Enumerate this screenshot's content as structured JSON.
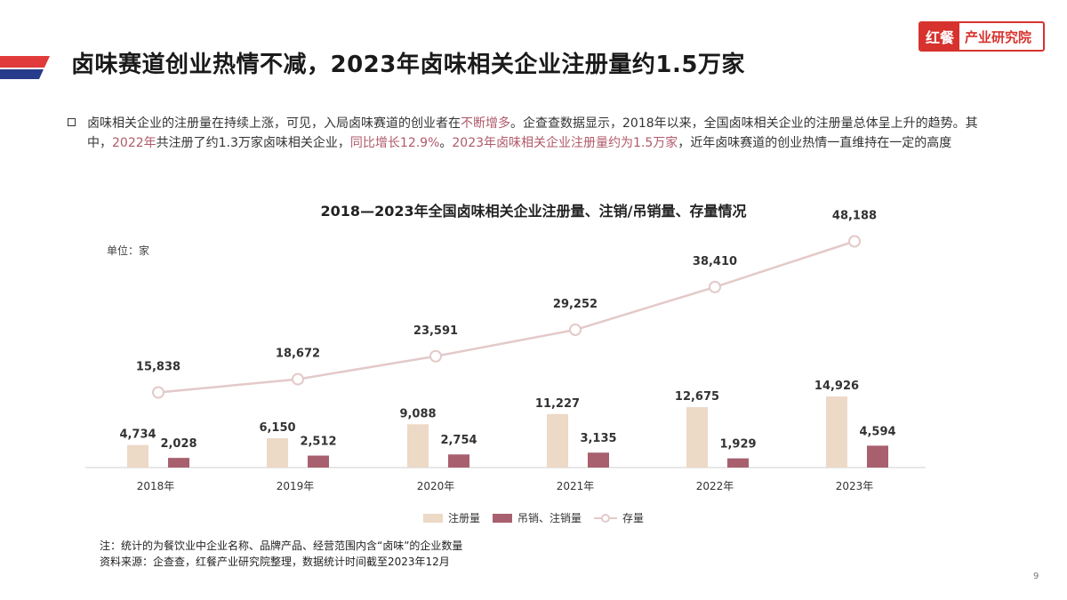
{
  "header": {
    "title": "卤味赛道创业热情不减，2023年卤味相关企业注册量约1.5万家",
    "brand_mark": "红餐",
    "brand_text": "产业研究院"
  },
  "colors": {
    "stripe_red": "#e03a3a",
    "stripe_blue": "#283c8c",
    "accent_red": "#d7322e",
    "highlight": "#b05a6a",
    "registered_bar": "#ecd9c6",
    "cancelled_bar": "#a8606e",
    "stock_line": "#e4c9c9"
  },
  "summary": {
    "p1": "卤味相关企业的注册量在持续上涨，可见，入局卤味赛道的创业者在",
    "h1": "不断增多",
    "p2": "。企查查数据显示，2018年以来，全国卤味相关企业的注册量总体呈上升的趋势。其中，",
    "h2": "2022年",
    "p3": "共注册了约1.3万家卤味相关企业，",
    "h3": "同比增长12.9%",
    "p4": "。",
    "h4": "2023年卤味相关企业注册量约为1.5万家",
    "p5": "，近年卤味赛道的创业热情一直维持在一定的高度"
  },
  "chart_data": {
    "type": "bar",
    "title": "2018—2023年全国卤味相关企业注册量、注销/吊销量、存量情况",
    "unit": "单位：家",
    "categories": [
      "2018年",
      "2019年",
      "2020年",
      "2021年",
      "2022年",
      "2023年"
    ],
    "series": [
      {
        "name": "注册量",
        "type": "bar",
        "values": [
          4734,
          6150,
          9088,
          11227,
          12675,
          14926
        ],
        "labels": [
          "4,734",
          "6,150",
          "9,088",
          "11,227",
          "12,675",
          "14,926"
        ]
      },
      {
        "name": "吊销、注销量",
        "type": "bar",
        "values": [
          2028,
          2512,
          2754,
          3135,
          1929,
          4594
        ],
        "labels": [
          "2,028",
          "2,512",
          "2,754",
          "3,135",
          "1,929",
          "4,594"
        ]
      },
      {
        "name": "存量",
        "type": "line",
        "values": [
          15838,
          18672,
          23591,
          29252,
          38410,
          48188
        ],
        "labels": [
          "15,838",
          "18,672",
          "23,591",
          "29,252",
          "38,410",
          "48,188"
        ]
      }
    ],
    "grid": false,
    "legend": "bottom"
  },
  "footer": {
    "note": "注：统计的为餐饮业中企业名称、品牌产品、经营范围内含“卤味”的企业数量",
    "source": "资料来源：企查查，红餐产业研究院整理，数据统计时间截至2023年12月",
    "page": "9"
  }
}
